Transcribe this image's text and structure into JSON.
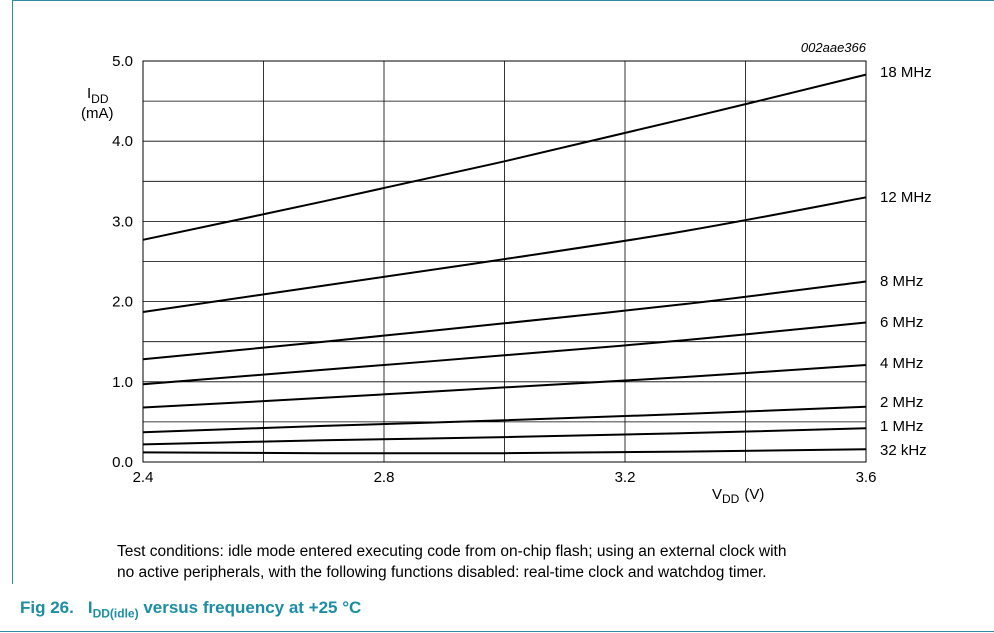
{
  "chart_data": {
    "type": "line",
    "figure_id": "002aae366",
    "ylabel_main": "I",
    "ylabel_sub": "DD",
    "ylabel_unit": "(mA)",
    "xlabel_main": "V",
    "xlabel_sub": "DD",
    "xlabel_unit": "(V)",
    "xlim": [
      2.4,
      3.6
    ],
    "ylim": [
      0.0,
      5.0
    ],
    "x_ticks": [
      "2.4",
      "2.8",
      "3.2",
      "3.6"
    ],
    "y_ticks": [
      "0.0",
      "1.0",
      "2.0",
      "3.0",
      "4.0",
      "5.0"
    ],
    "grid": true,
    "x": [
      2.4,
      2.7,
      3.0,
      3.3,
      3.6
    ],
    "series": [
      {
        "name": "18 MHz",
        "values": [
          2.77,
          3.25,
          3.75,
          4.28,
          4.83
        ]
      },
      {
        "name": "12 MHz",
        "values": [
          1.87,
          2.2,
          2.53,
          2.88,
          3.3
        ]
      },
      {
        "name": "8 MHz",
        "values": [
          1.28,
          1.5,
          1.73,
          1.97,
          2.25
        ]
      },
      {
        "name": "6 MHz",
        "values": [
          0.97,
          1.15,
          1.33,
          1.52,
          1.74
        ]
      },
      {
        "name": "4 MHz",
        "values": [
          0.68,
          0.8,
          0.93,
          1.06,
          1.21
        ]
      },
      {
        "name": "2 MHz",
        "values": [
          0.37,
          0.45,
          0.52,
          0.6,
          0.69
        ]
      },
      {
        "name": "1 MHz",
        "values": [
          0.22,
          0.27,
          0.31,
          0.36,
          0.42
        ]
      },
      {
        "name": "32 kHz",
        "values": [
          0.12,
          0.11,
          0.11,
          0.13,
          0.16
        ]
      }
    ]
  },
  "notes": {
    "line1": "Test conditions: idle mode entered executing code from on-chip flash; using an external clock with",
    "line2": "no active peripherals, with the following functions disabled: real-time clock and watchdog timer."
  },
  "caption": {
    "fig": "Fig 26.",
    "i": "I",
    "sub": "DD(idle)",
    "rest": " versus frequency at +25 °C"
  }
}
